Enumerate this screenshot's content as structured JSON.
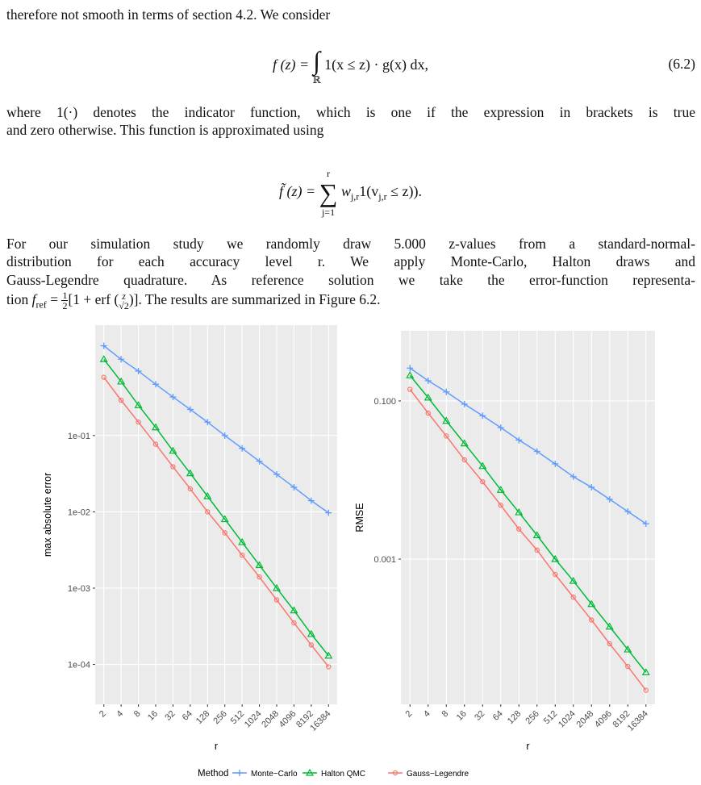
{
  "text": {
    "p1": "therefore not smooth in terms of section 4.2. We consider",
    "eq1": {
      "lhs": "f (z) =",
      "int": "∫",
      "domain": "ℝ",
      "rhs": "1(x ≤ z) · g(x) dx,",
      "number": "(6.2)"
    },
    "p2": [
      "where 1(·) denotes the indicator function, which is one if the expression in brackets is true",
      "and zero otherwise. This function is approximated using"
    ],
    "eq2": {
      "lhs": "f̃ (z) =",
      "sum": "∑",
      "upper": "r",
      "lower": "j=1",
      "w": "w",
      "w_sub": "j,r",
      "ind": "1(v",
      "v_sub": "j,r",
      "rest": "≤ z))."
    },
    "p3": [
      "For our simulation study we randomly draw 5.000 z-values from a standard-normal-",
      "distribution for each accuracy level r. We apply Monte-Carlo, Halton draws and",
      "Gauss-Legendre quadrature. As reference solution we take the error-function representa-"
    ],
    "p3_last": {
      "lead": "tion",
      "f": "f",
      "f_sub": "ref",
      "eq": "=",
      "half_num": "1",
      "half_den": "2",
      "open": "[1 + erf (",
      "z_num": "z",
      "z_den": "√2",
      "close": ")]",
      "tail": ". The results are summarized in Figure 6.2."
    }
  },
  "chart_data": [
    {
      "type": "line",
      "ylabel": "max absolute error",
      "xlabel": "r",
      "log_y": true,
      "grid": true,
      "legend_title": "Method",
      "legend": "bottom",
      "categories": [
        "2",
        "4",
        "8",
        "16",
        "32",
        "64",
        "128",
        "256",
        "512",
        "1024",
        "2048",
        "4096",
        "8192",
        "16384"
      ],
      "ylim": [
        3e-05,
        2.8
      ],
      "yticks": [
        {
          "value": 0.1,
          "label": "1e-01"
        },
        {
          "value": 0.01,
          "label": "1e-02"
        },
        {
          "value": 0.001,
          "label": "1e-03"
        },
        {
          "value": 0.0001,
          "label": "1e-04"
        }
      ],
      "series": [
        {
          "name": "Monte−Carlo",
          "color": "#619CFF",
          "marker": "plus",
          "values": [
            1.5,
            1.0,
            0.7,
            0.47,
            0.32,
            0.22,
            0.15,
            0.1,
            0.068,
            0.046,
            0.031,
            0.021,
            0.014,
            0.0097
          ]
        },
        {
          "name": "Halton QMC",
          "color": "#00BA38",
          "marker": "triangle",
          "values": [
            1.0,
            0.51,
            0.25,
            0.128,
            0.063,
            0.032,
            0.016,
            0.008,
            0.004,
            0.002,
            0.001,
            0.00051,
            0.00025,
            0.00013
          ]
        },
        {
          "name": "Gauss−Legendre",
          "color": "#F8766D",
          "marker": "circle",
          "values": [
            0.58,
            0.29,
            0.15,
            0.077,
            0.039,
            0.02,
            0.01,
            0.0053,
            0.0027,
            0.0014,
            0.0007,
            0.00035,
            0.00018,
            9.3e-05
          ]
        }
      ]
    },
    {
      "type": "line",
      "ylabel": "RMSE",
      "xlabel": "r",
      "log_y": true,
      "grid": true,
      "categories": [
        "2",
        "4",
        "8",
        "16",
        "32",
        "64",
        "128",
        "256",
        "512",
        "1024",
        "2048",
        "4096",
        "8192",
        "16384"
      ],
      "ylim": [
        1.46e-05,
        0.77
      ],
      "yticks": [
        {
          "value": 0.1,
          "label": "0.100"
        },
        {
          "value": 0.001,
          "label": "0.001"
        }
      ],
      "series": [
        {
          "name": "Monte−Carlo",
          "color": "#619CFF",
          "marker": "plus",
          "values": [
            0.26,
            0.18,
            0.13,
            0.091,
            0.065,
            0.046,
            0.032,
            0.023,
            0.016,
            0.011,
            0.0081,
            0.0057,
            0.004,
            0.0028
          ]
        },
        {
          "name": "Halton QMC",
          "color": "#00BA38",
          "marker": "triangle",
          "values": [
            0.21,
            0.11,
            0.056,
            0.029,
            0.015,
            0.0075,
            0.0039,
            0.002,
            0.001,
            0.00053,
            0.00027,
            0.00014,
            7.2e-05,
            3.7e-05
          ]
        },
        {
          "name": "Gauss−Legendre",
          "color": "#F8766D",
          "marker": "circle",
          "values": [
            0.14,
            0.07,
            0.036,
            0.018,
            0.0095,
            0.0048,
            0.0024,
            0.0013,
            0.00064,
            0.00033,
            0.00017,
            8.5e-05,
            4.4e-05,
            2.2e-05
          ]
        }
      ]
    }
  ]
}
